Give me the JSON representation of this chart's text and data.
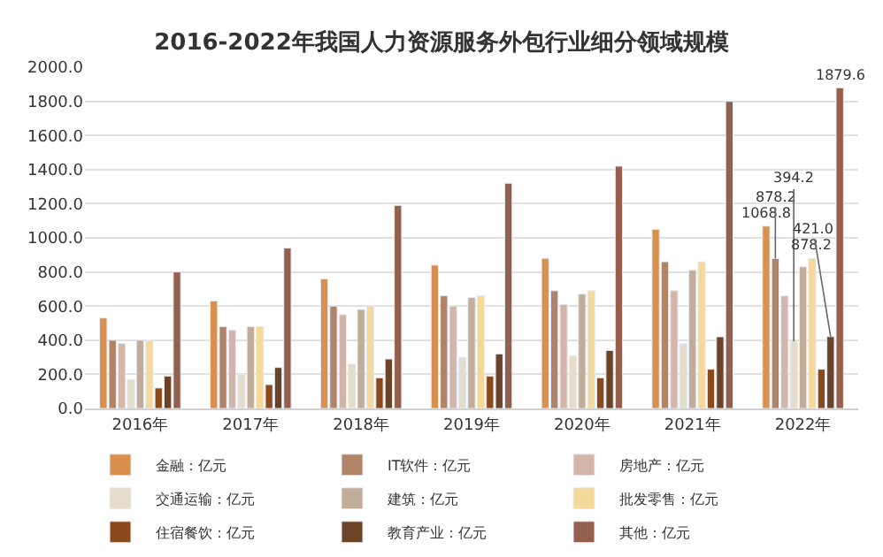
{
  "chart_data": {
    "type": "bar",
    "title": "2016-2022年我国人力资源服务外包行业细分领域规模",
    "categories": [
      "2016年",
      "2017年",
      "2018年",
      "2019年",
      "2020年",
      "2021年",
      "2022年"
    ],
    "series": [
      {
        "name": "金融：亿元",
        "color": "#d98f4e",
        "values": [
          530,
          630,
          760,
          840,
          880,
          1050,
          1068.8
        ],
        "value_labels": [
          null,
          null,
          null,
          null,
          null,
          null,
          "1068.8"
        ]
      },
      {
        "name": "IT软件：亿元",
        "color": "#b08468",
        "values": [
          400,
          480,
          600,
          660,
          690,
          860,
          878.2
        ],
        "value_labels": [
          null,
          null,
          null,
          null,
          null,
          null,
          "878.2"
        ]
      },
      {
        "name": "房地产：亿元",
        "color": "#d4b5aa",
        "values": [
          380,
          460,
          550,
          600,
          610,
          690,
          660
        ]
      },
      {
        "name": "交通运输：亿元",
        "color": "#e6dccb",
        "values": [
          170,
          200,
          260,
          300,
          310,
          380,
          394.2
        ],
        "value_labels": [
          null,
          null,
          null,
          null,
          null,
          null,
          "394.2"
        ]
      },
      {
        "name": "建筑：亿元",
        "color": "#c2ad98",
        "values": [
          400,
          480,
          580,
          650,
          670,
          810,
          830
        ]
      },
      {
        "name": "批发零售：亿元",
        "color": "#f5d99a",
        "values": [
          400,
          480,
          600,
          660,
          690,
          860,
          878.2
        ],
        "value_labels": [
          null,
          null,
          null,
          null,
          null,
          null,
          "878.2"
        ]
      },
      {
        "name": "住宿餐饮：亿元",
        "color": "#8b4a1c",
        "values": [
          120,
          140,
          180,
          190,
          180,
          230,
          230
        ]
      },
      {
        "name": "教育产业：亿元",
        "color": "#6b4327",
        "values": [
          190,
          240,
          290,
          320,
          340,
          420,
          421.0
        ],
        "value_labels": [
          null,
          null,
          null,
          null,
          null,
          null,
          "421.0"
        ]
      },
      {
        "name": "其他：亿元",
        "color": "#93604d",
        "values": [
          800,
          940,
          1190,
          1320,
          1420,
          1800,
          1879.6
        ],
        "value_labels": [
          null,
          null,
          null,
          null,
          null,
          null,
          "1879.6"
        ]
      }
    ],
    "ylim": [
      0,
      2000
    ],
    "yticks": [
      {
        "value": 0,
        "label": "0.0"
      },
      {
        "value": 200,
        "label": "200.0"
      },
      {
        "value": 400,
        "label": "400.0"
      },
      {
        "value": 600,
        "label": "600.0"
      },
      {
        "value": 800,
        "label": "800.0"
      },
      {
        "value": 1000,
        "label": "1000.0"
      },
      {
        "value": 1200,
        "label": "1200.0"
      },
      {
        "value": 1400,
        "label": "1400.0"
      },
      {
        "value": 1600,
        "label": "1600.0"
      },
      {
        "value": 1800,
        "label": "1800.0"
      },
      {
        "value": 2000,
        "label": "2000.0"
      }
    ],
    "grid": "y",
    "legend": "bottom"
  }
}
